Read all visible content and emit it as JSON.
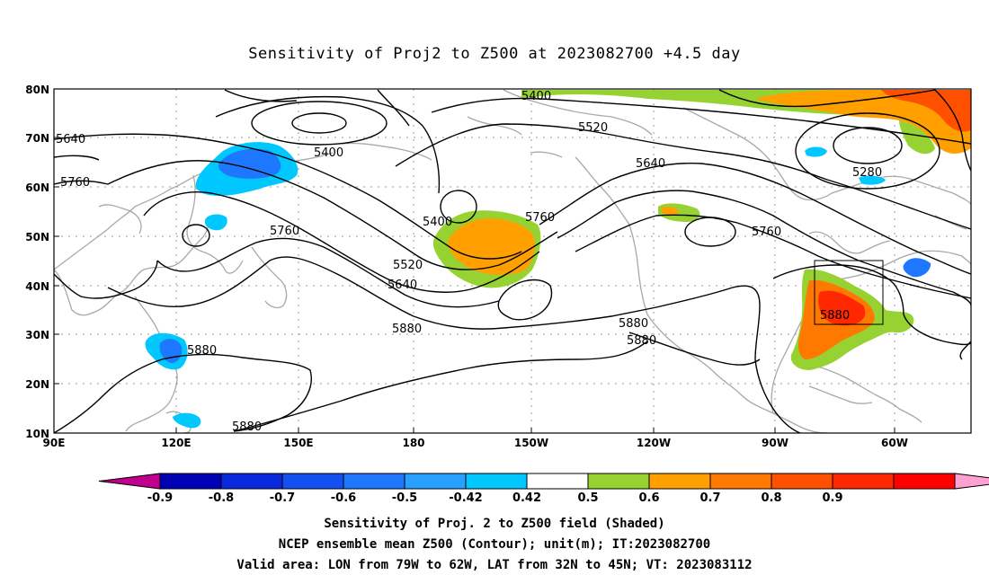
{
  "title": "Sensitivity of Proj2 to Z500 at 2023082700 +4.5 day",
  "lat_ticks": [
    "80N",
    "70N",
    "60N",
    "50N",
    "40N",
    "30N",
    "20N",
    "10N"
  ],
  "lon_ticks": [
    "90E",
    "120E",
    "150E",
    "180",
    "150W",
    "120W",
    "90W",
    "60W"
  ],
  "contour_labels": [
    "5400",
    "5520",
    "5640",
    "5280",
    "5640",
    "5760",
    "5400",
    "5760",
    "5520",
    "5640",
    "5880",
    "5880",
    "5880",
    "5880",
    "5760",
    "5760",
    "5880",
    "5880",
    "5400"
  ],
  "colorbar": {
    "labels": [
      "-0.9",
      "-0.8",
      "-0.7",
      "-0.6",
      "-0.5",
      "-0.42",
      "0.42",
      "0.5",
      "0.6",
      "0.7",
      "0.8",
      "0.9"
    ],
    "colors": [
      "#c0008c",
      "#0000b4",
      "#0a28dc",
      "#1450f0",
      "#1e78ff",
      "#28a0ff",
      "#00c8ff",
      "#ffffff",
      "#96d232",
      "#ffa000",
      "#ff7800",
      "#ff5000",
      "#ff2800",
      "#ff0000",
      "#ffa0d2"
    ]
  },
  "captions": [
    "Sensitivity of Proj. 2 to Z500 field (Shaded)",
    "NCEP ensemble mean Z500 (Contour); unit(m); IT:2023082700",
    "Valid area: LON from 79W to 62W, LAT from 32N to 45N; VT: 2023083112"
  ],
  "valid_area": {
    "lon": [
      "79W",
      "62W"
    ],
    "lat": [
      "32N",
      "45N"
    ]
  }
}
